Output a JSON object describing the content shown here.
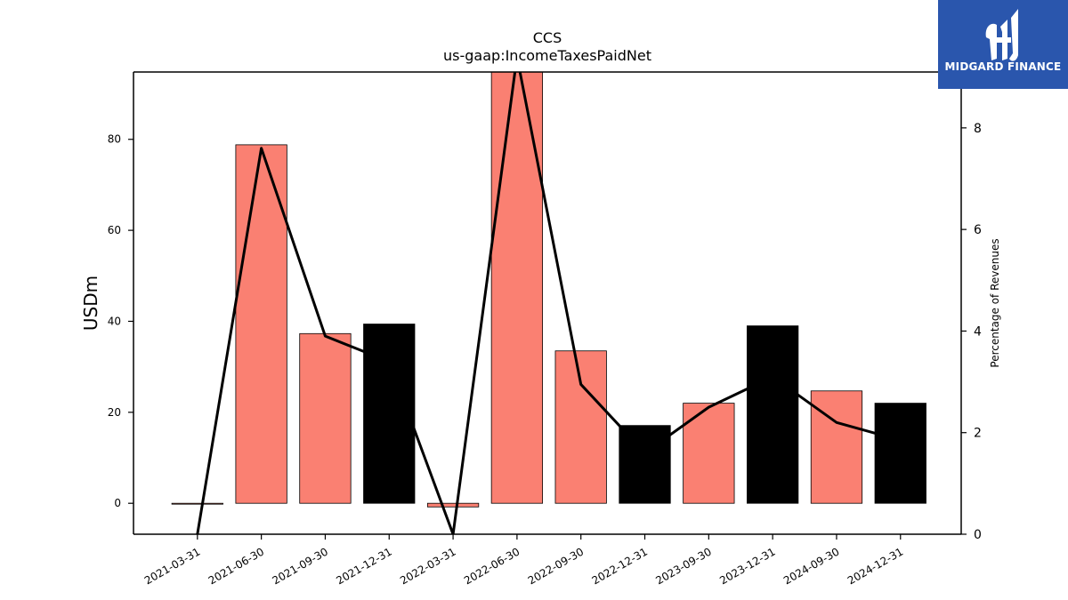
{
  "chart_data": {
    "type": "bar",
    "title": "CCS",
    "subtitle": "us-gaap:IncomeTaxesPaidNet",
    "ylabel": "USDm",
    "ylabel_right": "Percentage of Revenues",
    "categories": [
      "2021-03-31",
      "2021-06-30",
      "2021-09-30",
      "2021-12-31",
      "2022-03-31",
      "2022-06-30",
      "2022-09-30",
      "2022-12-31",
      "2023-09-30",
      "2023-12-31",
      "2024-09-30",
      "2024-12-31"
    ],
    "bar_colors": [
      "#fa8072",
      "#fa8072",
      "#fa8072",
      "#000000",
      "#fa8072",
      "#fa8072",
      "#fa8072",
      "#000000",
      "#fa8072",
      "#000000",
      "#fa8072",
      "#000000"
    ],
    "series": [
      {
        "axis": "left",
        "type": "bar",
        "values": [
          0,
          78.8,
          37.3,
          39.4,
          -0.8,
          95.5,
          33.5,
          17.1,
          22.0,
          39.0,
          24.7,
          22.0
        ]
      },
      {
        "axis": "right",
        "type": "line",
        "color": "#000000",
        "values": [
          0,
          7.6,
          3.9,
          3.4,
          0,
          9.4,
          2.95,
          1.6,
          2.5,
          3.1,
          2.2,
          1.85
        ]
      }
    ],
    "ylim": [
      -6.8,
      94.8
    ],
    "ylim_right": [
      0,
      9.1
    ],
    "yticks": [
      0,
      20,
      40,
      60,
      80
    ],
    "yticks_right": [
      0,
      2,
      4,
      6,
      8
    ],
    "grid": false
  },
  "logo": {
    "text": "MIDGARD FINANCE",
    "color": "#2a56ad"
  }
}
